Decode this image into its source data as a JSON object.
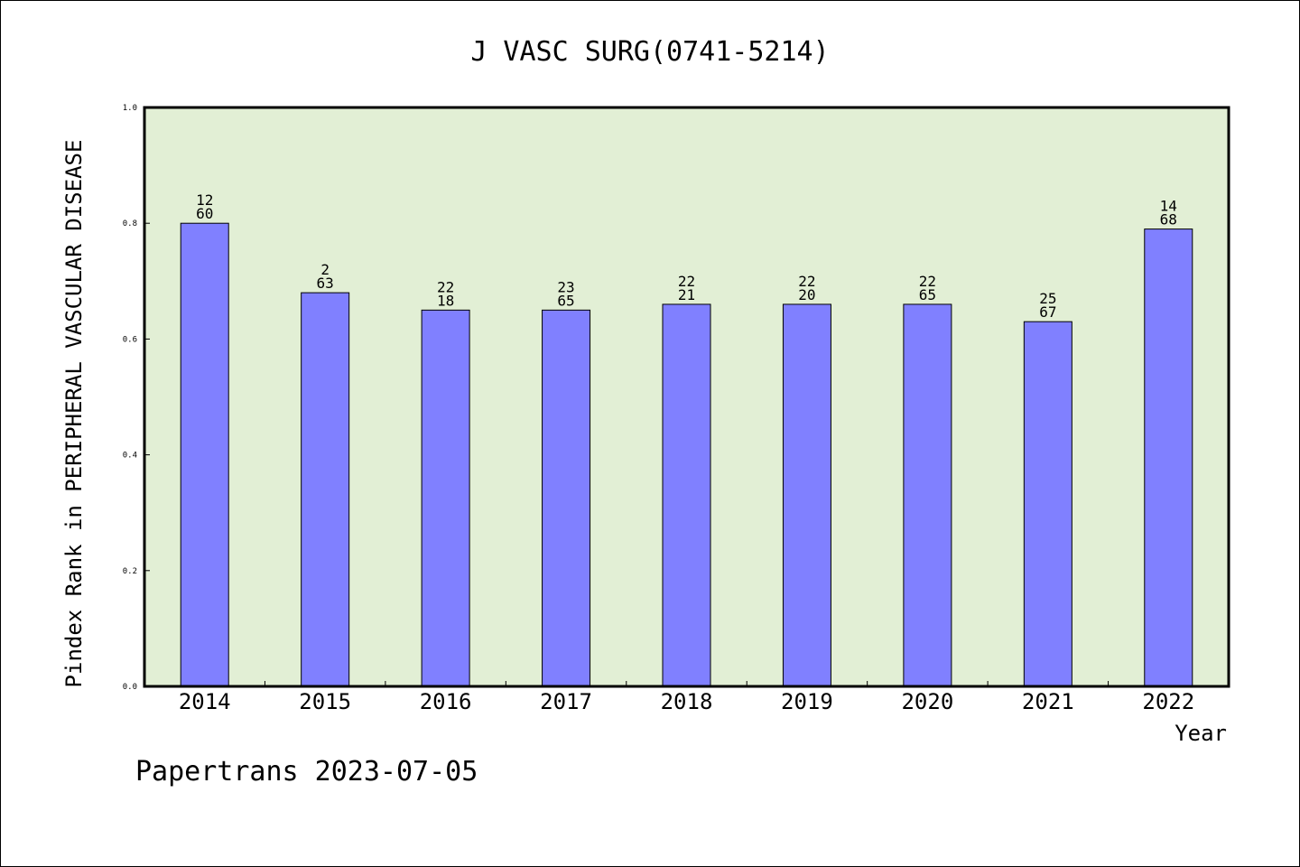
{
  "chart_data": {
    "type": "bar",
    "title": "J VASC SURG(0741-5214)",
    "xlabel": "Year",
    "ylabel": "Pindex Rank in PERIPHERAL VASCULAR DISEASE",
    "categories": [
      "2014",
      "2015",
      "2016",
      "2017",
      "2018",
      "2019",
      "2020",
      "2021",
      "2022"
    ],
    "values": [
      0.8,
      0.68,
      0.65,
      0.65,
      0.66,
      0.66,
      0.66,
      0.63,
      0.79
    ],
    "bar_labels": [
      [
        "12",
        "60"
      ],
      [
        "2",
        "63"
      ],
      [
        "22",
        "18"
      ],
      [
        "23",
        "65"
      ],
      [
        "22",
        "21"
      ],
      [
        "22",
        "20"
      ],
      [
        "22",
        "65"
      ],
      [
        "25",
        "67"
      ],
      [
        "14",
        "68"
      ]
    ],
    "ylim": [
      0,
      1.0
    ],
    "yticks": [
      "0.0",
      "0.2",
      "0.4",
      "0.6",
      "0.8",
      "1.0"
    ],
    "grid": false,
    "colors": {
      "bar": "#8080ff",
      "plot_bg": "#e2efd5"
    }
  },
  "footer": "Papertrans 2023-07-05"
}
